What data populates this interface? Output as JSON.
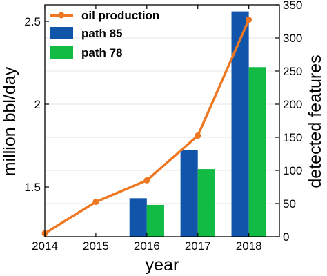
{
  "chart_data": {
    "type": "bar+line",
    "xlabel": "year",
    "ylabel_left": "million bbl/day",
    "ylabel_right": "detected features",
    "x": [
      2014,
      2015,
      2016,
      2017,
      2018
    ],
    "x_tick_labels": [
      "2014",
      "2015",
      "2016",
      "2017",
      "2018"
    ],
    "xlim": [
      2014,
      2018.6
    ],
    "ylim_left": [
      1.2,
      2.6
    ],
    "ylim_right": [
      0,
      350
    ],
    "left_ticks": [
      1.5,
      2,
      2.5
    ],
    "left_tick_labels": [
      "1.5",
      "2",
      "2.5"
    ],
    "right_ticks": [
      0,
      50,
      100,
      150,
      200,
      250,
      300,
      350
    ],
    "right_tick_labels": [
      "0",
      "50",
      "100",
      "150",
      "200",
      "250",
      "300",
      "350"
    ],
    "line_series": {
      "name": "oil production",
      "axis": "left",
      "color": "#ee7722",
      "x": [
        2014,
        2015,
        2016,
        2017,
        2018
      ],
      "values": [
        1.22,
        1.41,
        1.54,
        1.81,
        2.51
      ]
    },
    "bar_series": [
      {
        "name": "path 85",
        "axis": "right",
        "color": "#1155aa",
        "x": [
          2016,
          2017,
          2018
        ],
        "values": [
          58,
          131,
          340
        ]
      },
      {
        "name": "path 78",
        "axis": "right",
        "color": "#11bb44",
        "x": [
          2016,
          2017,
          2018
        ],
        "values": [
          48,
          102,
          256
        ]
      }
    ],
    "legend": {
      "placement": "top-left",
      "entries": [
        "oil production",
        "path 85",
        "path 78"
      ]
    },
    "grid": true
  }
}
